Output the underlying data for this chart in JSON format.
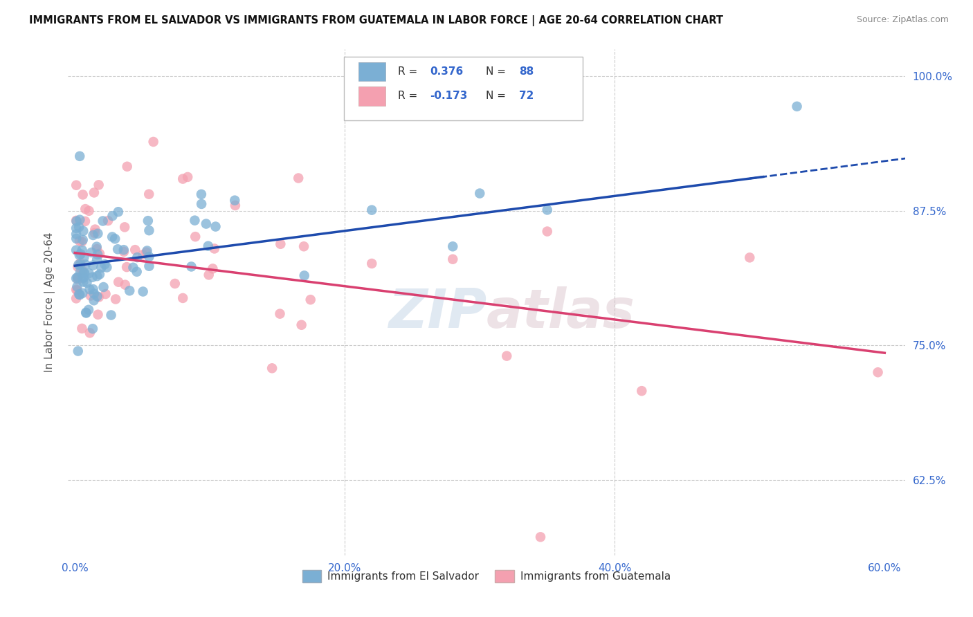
{
  "title": "IMMIGRANTS FROM EL SALVADOR VS IMMIGRANTS FROM GUATEMALA IN LABOR FORCE | AGE 20-64 CORRELATION CHART",
  "source": "Source: ZipAtlas.com",
  "ylabel_label": "In Labor Force | Age 20-64",
  "legend_bottom": [
    "Immigrants from El Salvador",
    "Immigrants from Guatemala"
  ],
  "r_el_salvador": 0.376,
  "n_el_salvador": 88,
  "r_guatemala": -0.173,
  "n_guatemala": 72,
  "blue_color": "#7BAFD4",
  "pink_color": "#F4A0B0",
  "blue_line_color": "#1E4BAD",
  "pink_line_color": "#D94070",
  "watermark": "ZIPatlas",
  "xlim": [
    -0.005,
    0.615
  ],
  "ylim": [
    0.555,
    1.025
  ],
  "yticks": [
    0.625,
    0.75,
    0.875,
    1.0
  ],
  "ytick_labels": [
    "62.5%",
    "75.0%",
    "87.5%",
    "100.0%"
  ],
  "xticks": [
    0.0,
    0.2,
    0.4,
    0.6
  ],
  "xtick_labels": [
    "0.0%",
    "20.0%",
    "40.0%",
    "60.0%"
  ],
  "blue_intercept": 0.824,
  "blue_slope": 0.162,
  "pink_intercept": 0.836,
  "pink_slope": -0.155
}
